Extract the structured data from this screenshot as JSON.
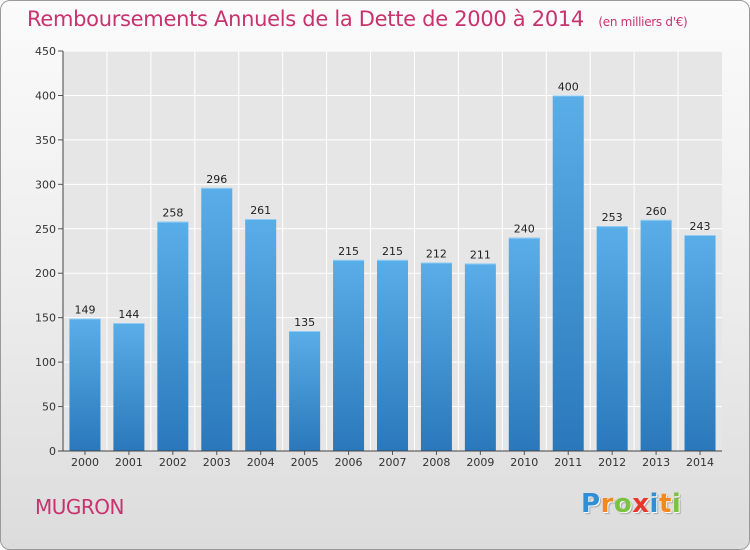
{
  "chart_data": {
    "type": "bar",
    "title": "Remboursements Annuels de la Dette de 2000 à 2014",
    "subtitle": "(en milliers d'€)",
    "categories": [
      "2000",
      "2001",
      "2002",
      "2003",
      "2004",
      "2005",
      "2006",
      "2007",
      "2008",
      "2009",
      "2010",
      "2011",
      "2012",
      "2013",
      "2014"
    ],
    "values": [
      149,
      144,
      258,
      296,
      261,
      135,
      215,
      215,
      212,
      211,
      240,
      400,
      253,
      260,
      243
    ],
    "yticks": [
      0,
      50,
      100,
      150,
      200,
      250,
      300,
      350,
      400,
      450
    ],
    "ylim": [
      0,
      450
    ],
    "grid": true,
    "xlabel": "",
    "ylabel": ""
  },
  "commune": "MUGRON",
  "logo": {
    "text": "Proxiti",
    "letters": [
      {
        "ch": "P",
        "color": "#2e8fd6"
      },
      {
        "ch": "r",
        "color": "#f08a1c"
      },
      {
        "ch": "o",
        "color": "#7cc242"
      },
      {
        "ch": "x",
        "color": "#e8372a"
      },
      {
        "ch": "i",
        "color": "#2e8fd6"
      },
      {
        "ch": "t",
        "color": "#f08a1c"
      },
      {
        "ch": "i",
        "color": "#7cc242"
      }
    ]
  },
  "colors": {
    "title": "#c8326e",
    "bar_top": "#5aaee8",
    "bar_bottom": "#2a78bb",
    "grid": "#ffffff"
  }
}
